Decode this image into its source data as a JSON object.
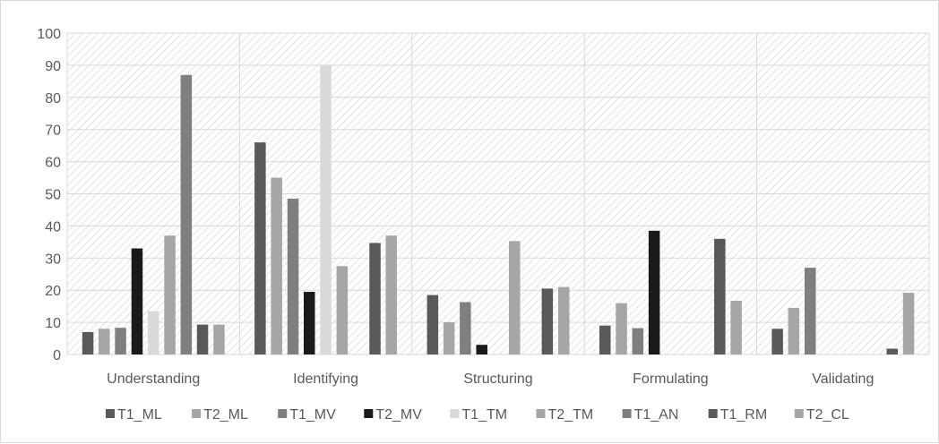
{
  "chart_data": {
    "type": "bar",
    "title": "",
    "xlabel": "",
    "ylabel": "",
    "ylim": [
      0,
      100
    ],
    "yticks": [
      0,
      10,
      20,
      30,
      40,
      50,
      60,
      70,
      80,
      90,
      100
    ],
    "categories": [
      "Understanding",
      "Identifying",
      "Structuring",
      "Formulating",
      "Validating"
    ],
    "series": [
      {
        "name": "T1_ML",
        "color": "#595959",
        "values": [
          7,
          66,
          18.5,
          9,
          8
        ]
      },
      {
        "name": "T2_ML",
        "color": "#a6a6a6",
        "values": [
          8,
          55,
          10,
          16,
          14.5
        ]
      },
      {
        "name": "T1_MV",
        "color": "#7f7f7f",
        "values": [
          8.3,
          48.5,
          16.3,
          8.2,
          27
        ]
      },
      {
        "name": "T2_MV",
        "color": "#1a1a1a",
        "values": [
          33,
          19.5,
          3,
          38.5,
          0
        ]
      },
      {
        "name": "T1_TM",
        "color": "#d9d9d9",
        "values": [
          13.5,
          90,
          0,
          0,
          0
        ]
      },
      {
        "name": "T2_TM",
        "color": "#a6a6a6",
        "values": [
          37,
          27.5,
          35.3,
          0,
          0
        ]
      },
      {
        "name": "T1_AN",
        "color": "#7f7f7f",
        "values": [
          87,
          0,
          0,
          0,
          0
        ]
      },
      {
        "name": "T1_RM",
        "color": "#595959",
        "values": [
          9.3,
          34.7,
          20.5,
          36,
          1.8
        ]
      },
      {
        "name": "T2_CL",
        "color": "#a6a6a6",
        "values": [
          9.3,
          37,
          21,
          16.7,
          19.2
        ]
      }
    ],
    "grid": true,
    "legend": "bottom",
    "background_pattern": "diagonal-hatch"
  }
}
